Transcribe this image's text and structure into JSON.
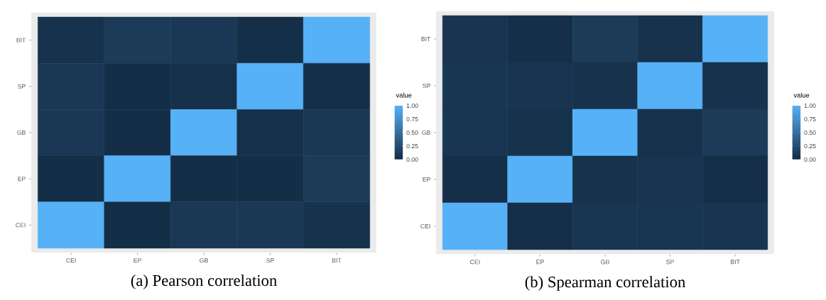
{
  "chart_data": [
    {
      "type": "heatmap",
      "title": "(a) Pearson correlation",
      "clabel": "value",
      "categories": [
        "CEI",
        "EP",
        "GB",
        "SP",
        "BIT"
      ],
      "y_categories": [
        "BIT",
        "SP",
        "GB",
        "EP",
        "CEI"
      ],
      "cells": [
        [
          0.05,
          0.12,
          0.1,
          0.03,
          1
        ],
        [
          0.1,
          0.02,
          0.04,
          1,
          0.03
        ],
        [
          0.1,
          0.02,
          1,
          0.04,
          0.1
        ],
        [
          0.02,
          1,
          0.02,
          0.02,
          0.12
        ],
        [
          1,
          0.02,
          0.1,
          0.1,
          0.05
        ]
      ],
      "clim": [
        0,
        1
      ],
      "cticks": [
        {
          "value": 0,
          "label": "0.00"
        },
        {
          "value": 0.25,
          "label": "0.25"
        },
        {
          "value": 0.5,
          "label": "0.50"
        },
        {
          "value": 0.75,
          "label": "0.75"
        },
        {
          "value": 1,
          "label": "1.00"
        }
      ]
    },
    {
      "type": "heatmap",
      "title": "(b) Spearman correlation",
      "clabel": "value",
      "categories": [
        "CEI",
        "EP",
        "GB",
        "SP",
        "BIT"
      ],
      "y_categories": [
        "BIT",
        "SP",
        "GB",
        "EP",
        "CEI"
      ],
      "cells": [
        [
          0.07,
          0.03,
          0.12,
          0.05,
          1
        ],
        [
          0.08,
          0.07,
          0.05,
          1,
          0.05
        ],
        [
          0.08,
          0.05,
          1,
          0.05,
          0.12
        ],
        [
          0.03,
          1,
          0.05,
          0.07,
          0.03
        ],
        [
          1,
          0.03,
          0.08,
          0.08,
          0.07
        ]
      ],
      "clim": [
        0,
        1
      ],
      "cticks": [
        {
          "value": 0,
          "label": "0.00"
        },
        {
          "value": 0.25,
          "label": "0.25"
        },
        {
          "value": 0.5,
          "label": "0.50"
        },
        {
          "value": 0.75,
          "label": "0.75"
        },
        {
          "value": 1,
          "label": "1.00"
        }
      ]
    }
  ]
}
